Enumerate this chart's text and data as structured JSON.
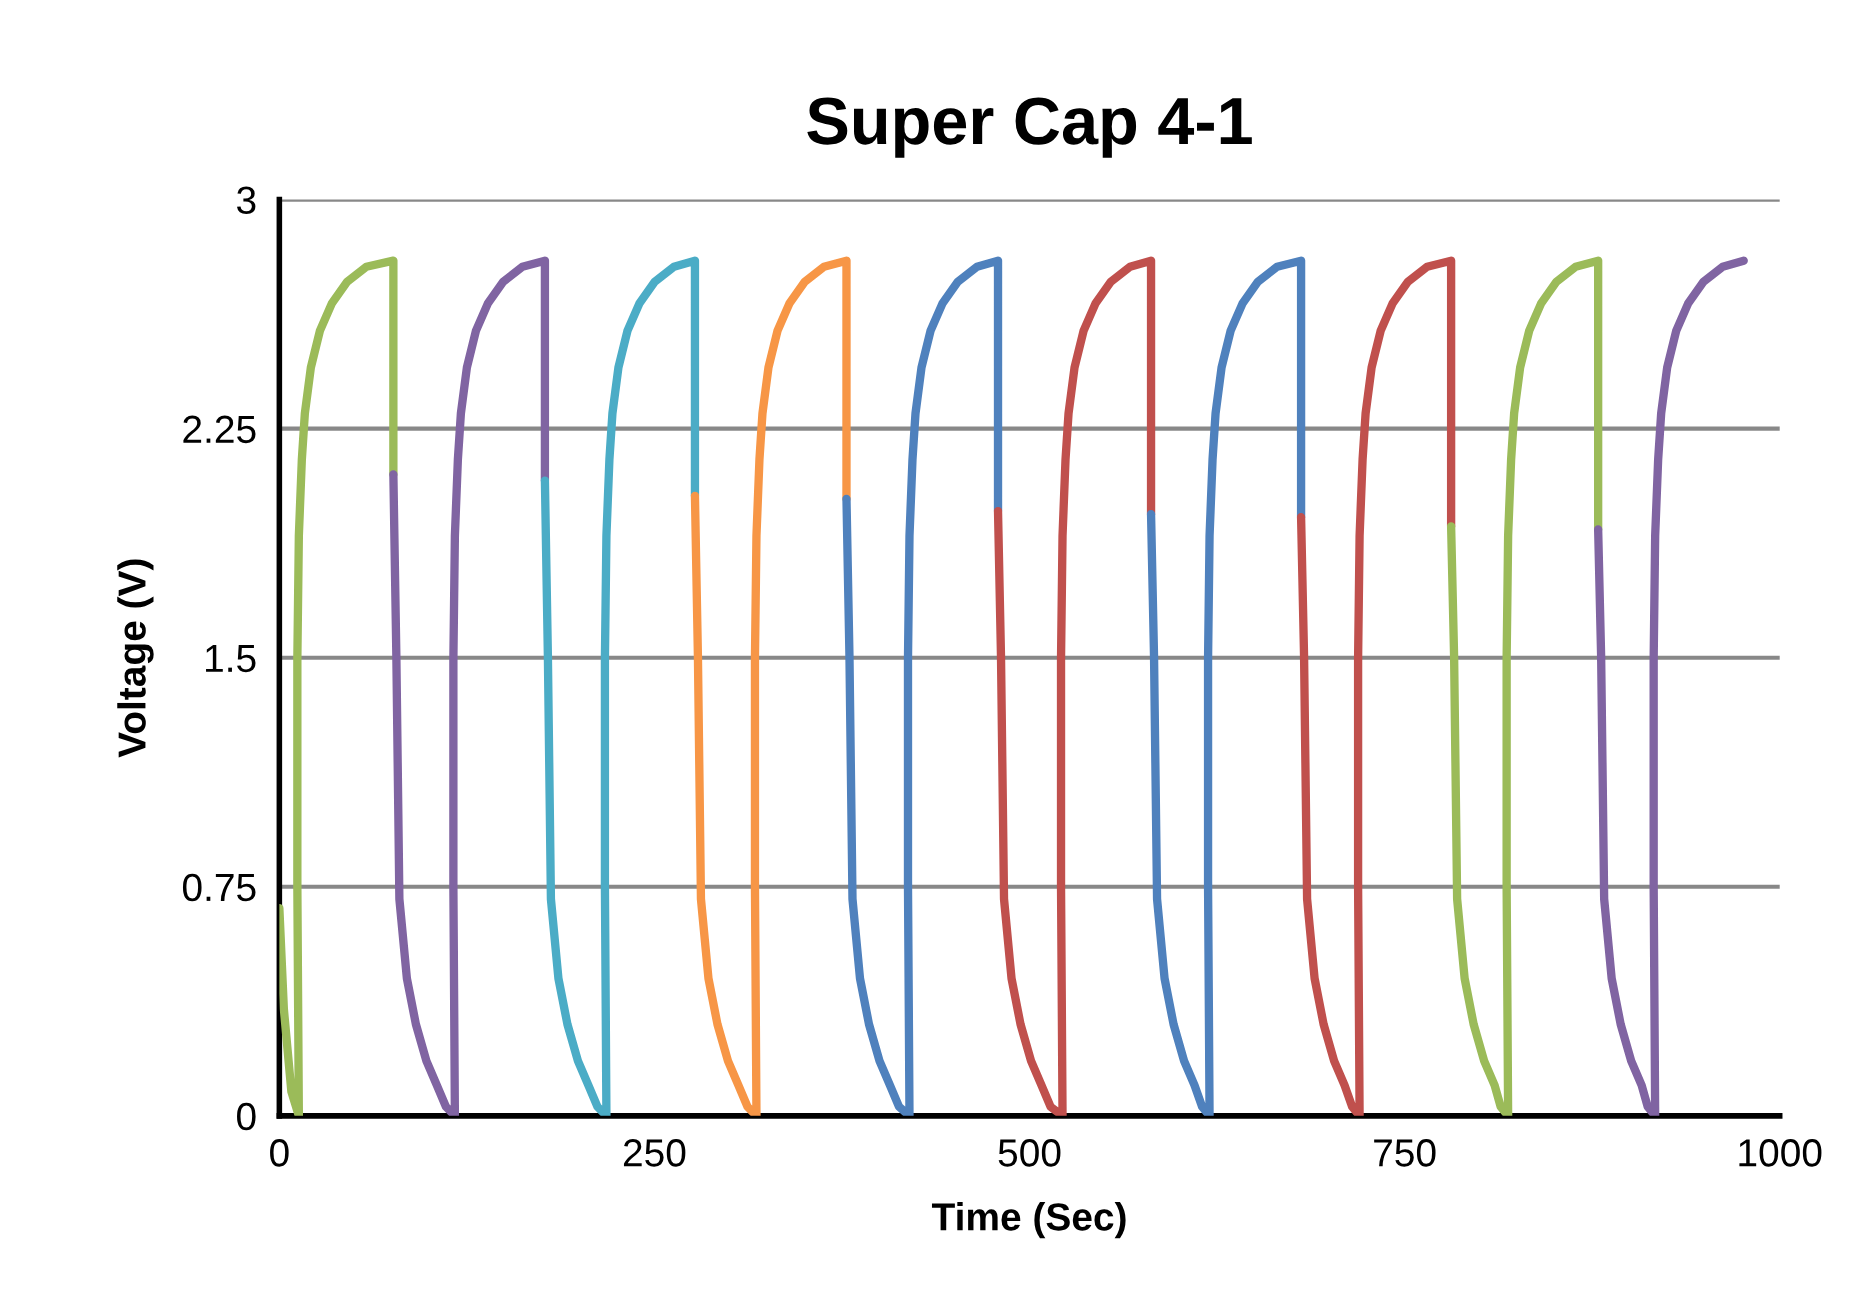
{
  "chart_data": {
    "type": "line",
    "title": "Super Cap 4-1",
    "xlabel": "Time (Sec)",
    "ylabel": "Voltage (V)",
    "xlim": [
      0,
      1000
    ],
    "xticks": [
      0,
      250,
      500,
      750,
      1000
    ],
    "ylim": [
      0,
      3
    ],
    "yticks": [
      0,
      0.75,
      1.5,
      2.25,
      3
    ],
    "grid": "y",
    "legend": false,
    "marker": "none",
    "line_style": "solid",
    "series": [
      {
        "color": "#9bbb59",
        "x": [
          0,
          3,
          8,
          13,
          12,
          12,
          13,
          15,
          17,
          21,
          27,
          35,
          45,
          58,
          76,
          76
        ],
        "values": [
          0.68,
          0.35,
          0.08,
          0,
          0.75,
          1.5,
          1.9,
          2.15,
          2.3,
          2.45,
          2.57,
          2.66,
          2.73,
          2.78,
          2.8,
          2.1
        ]
      },
      {
        "color": "#8064a2",
        "x": [
          76,
          78,
          80,
          85,
          91,
          98,
          105,
          111,
          117,
          116,
          116,
          117,
          119,
          121,
          125,
          131,
          139,
          149,
          162,
          177,
          177
        ],
        "values": [
          2.1,
          1.5,
          0.71,
          0.45,
          0.3,
          0.18,
          0.1,
          0.03,
          0,
          0.75,
          1.5,
          1.9,
          2.15,
          2.3,
          2.45,
          2.57,
          2.66,
          2.73,
          2.78,
          2.8,
          2.08
        ]
      },
      {
        "color": "#4bacc6",
        "x": [
          177,
          179,
          181,
          186,
          192,
          199,
          206,
          212,
          218,
          217,
          217,
          218,
          220,
          222,
          226,
          232,
          240,
          250,
          263,
          277,
          277
        ],
        "values": [
          2.08,
          1.5,
          0.71,
          0.45,
          0.3,
          0.18,
          0.1,
          0.03,
          0,
          0.75,
          1.5,
          1.9,
          2.15,
          2.3,
          2.45,
          2.57,
          2.66,
          2.73,
          2.78,
          2.8,
          2.03
        ]
      },
      {
        "color": "#f79646",
        "x": [
          277,
          279,
          281,
          286,
          292,
          299,
          306,
          312,
          318,
          317,
          317,
          318,
          320,
          322,
          326,
          332,
          340,
          350,
          363,
          378,
          378
        ],
        "values": [
          2.03,
          1.5,
          0.71,
          0.45,
          0.3,
          0.18,
          0.1,
          0.03,
          0,
          0.75,
          1.5,
          1.9,
          2.15,
          2.3,
          2.45,
          2.57,
          2.66,
          2.73,
          2.78,
          2.8,
          2.02
        ]
      },
      {
        "color": "#4f81bd",
        "x": [
          378,
          380,
          382,
          387,
          393,
          400,
          407,
          413,
          420,
          419,
          419,
          420,
          422,
          424,
          428,
          434,
          442,
          452,
          465,
          479,
          479
        ],
        "values": [
          2.02,
          1.5,
          0.71,
          0.45,
          0.3,
          0.18,
          0.1,
          0.03,
          0,
          0.75,
          1.5,
          1.9,
          2.15,
          2.3,
          2.45,
          2.57,
          2.66,
          2.73,
          2.78,
          2.8,
          1.98
        ]
      },
      {
        "color": "#c0504d",
        "x": [
          479,
          481,
          483,
          488,
          494,
          501,
          508,
          514,
          522,
          521,
          521,
          522,
          524,
          526,
          530,
          536,
          544,
          554,
          567,
          581,
          581
        ],
        "values": [
          1.98,
          1.5,
          0.71,
          0.45,
          0.3,
          0.18,
          0.1,
          0.03,
          0,
          0.75,
          1.5,
          1.9,
          2.15,
          2.3,
          2.45,
          2.57,
          2.66,
          2.73,
          2.78,
          2.8,
          1.97
        ]
      },
      {
        "color": "#4f81bd",
        "x": [
          581,
          583,
          585,
          590,
          596,
          603,
          610,
          615,
          620,
          619,
          619,
          620,
          622,
          624,
          628,
          634,
          642,
          652,
          665,
          681,
          681
        ],
        "values": [
          1.97,
          1.5,
          0.71,
          0.45,
          0.3,
          0.18,
          0.1,
          0.03,
          0,
          0.75,
          1.5,
          1.9,
          2.15,
          2.3,
          2.45,
          2.57,
          2.66,
          2.73,
          2.78,
          2.8,
          1.96
        ]
      },
      {
        "color": "#c0504d",
        "x": [
          681,
          683,
          685,
          690,
          696,
          703,
          710,
          715,
          720,
          719,
          719,
          720,
          722,
          724,
          728,
          734,
          742,
          752,
          765,
          781,
          781
        ],
        "values": [
          1.96,
          1.5,
          0.71,
          0.45,
          0.3,
          0.18,
          0.1,
          0.03,
          0,
          0.75,
          1.5,
          1.9,
          2.15,
          2.3,
          2.45,
          2.57,
          2.66,
          2.73,
          2.78,
          2.8,
          1.93
        ]
      },
      {
        "color": "#9bbb59",
        "x": [
          781,
          783,
          785,
          790,
          796,
          803,
          810,
          814,
          819,
          818,
          818,
          819,
          821,
          823,
          827,
          833,
          841,
          851,
          864,
          879,
          879
        ],
        "values": [
          1.93,
          1.5,
          0.71,
          0.45,
          0.3,
          0.18,
          0.1,
          0.03,
          0,
          0.75,
          1.5,
          1.9,
          2.15,
          2.3,
          2.45,
          2.57,
          2.66,
          2.73,
          2.78,
          2.8,
          1.92
        ]
      },
      {
        "color": "#8064a2",
        "x": [
          879,
          881,
          883,
          888,
          894,
          901,
          908,
          912,
          917,
          916,
          916,
          917,
          919,
          921,
          925,
          931,
          939,
          949,
          962,
          976
        ],
        "values": [
          1.92,
          1.5,
          0.71,
          0.45,
          0.3,
          0.18,
          0.1,
          0.03,
          0,
          0.75,
          1.5,
          1.9,
          2.15,
          2.3,
          2.45,
          2.57,
          2.66,
          2.73,
          2.78,
          2.8
        ]
      }
    ]
  }
}
